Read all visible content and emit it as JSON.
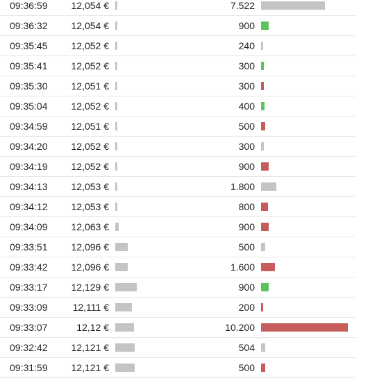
{
  "colors": {
    "neutral": "#c4c4c4",
    "buy": "#5cc25c",
    "sell": "#c75c5c"
  },
  "trades": [
    {
      "time": "09:36:59",
      "price": "12,054 €",
      "volume": "7.522",
      "side": "neutral"
    },
    {
      "time": "09:36:32",
      "price": "12,054 €",
      "volume": "900",
      "side": "buy"
    },
    {
      "time": "09:35:45",
      "price": "12,052 €",
      "volume": "240",
      "side": "neutral"
    },
    {
      "time": "09:35:41",
      "price": "12,052 €",
      "volume": "300",
      "side": "buy"
    },
    {
      "time": "09:35:30",
      "price": "12,051 €",
      "volume": "300",
      "side": "sell"
    },
    {
      "time": "09:35:04",
      "price": "12,052 €",
      "volume": "400",
      "side": "buy"
    },
    {
      "time": "09:34:59",
      "price": "12,051 €",
      "volume": "500",
      "side": "sell"
    },
    {
      "time": "09:34:20",
      "price": "12,052 €",
      "volume": "300",
      "side": "neutral"
    },
    {
      "time": "09:34:19",
      "price": "12,052 €",
      "volume": "900",
      "side": "sell"
    },
    {
      "time": "09:34:13",
      "price": "12,053 €",
      "volume": "1.800",
      "side": "neutral"
    },
    {
      "time": "09:34:12",
      "price": "12,053 €",
      "volume": "800",
      "side": "sell"
    },
    {
      "time": "09:34:09",
      "price": "12,063 €",
      "volume": "900",
      "side": "sell"
    },
    {
      "time": "09:33:51",
      "price": "12,096 €",
      "volume": "500",
      "side": "neutral"
    },
    {
      "time": "09:33:42",
      "price": "12,096 €",
      "volume": "1.600",
      "side": "sell"
    },
    {
      "time": "09:33:17",
      "price": "12,129 €",
      "volume": "900",
      "side": "buy"
    },
    {
      "time": "09:33:09",
      "price": "12,111 €",
      "volume": "200",
      "side": "sell"
    },
    {
      "time": "09:33:07",
      "price": "12,12 €",
      "volume": "10.200",
      "side": "sell"
    },
    {
      "time": "09:32:42",
      "price": "12,121 €",
      "volume": "504",
      "side": "neutral"
    },
    {
      "time": "09:31:59",
      "price": "12,121 €",
      "volume": "500",
      "side": "sell"
    }
  ]
}
